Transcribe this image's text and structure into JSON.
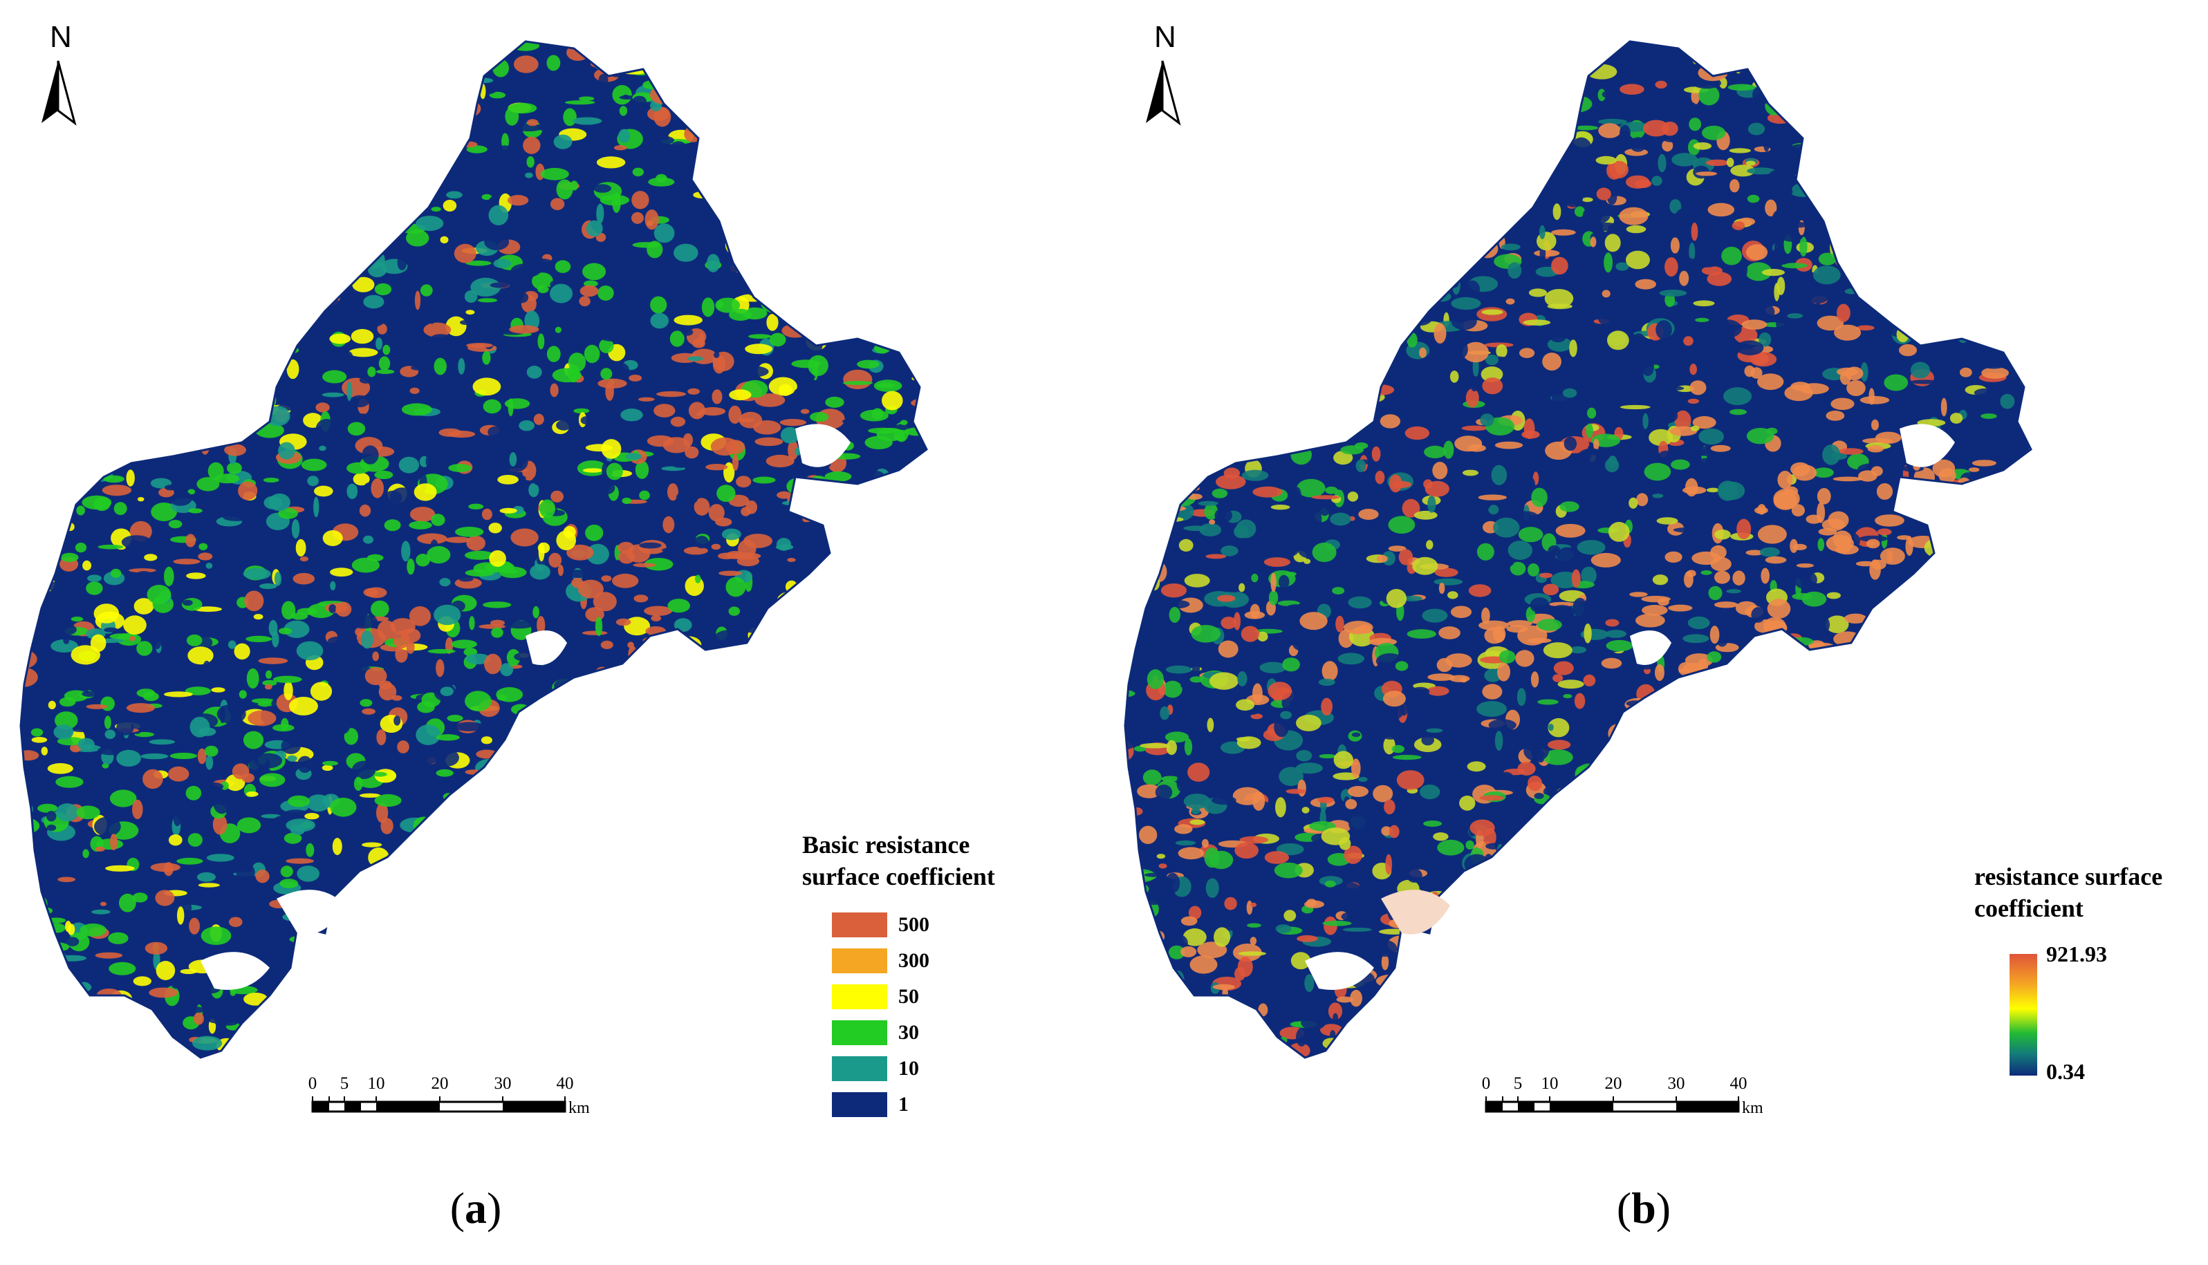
{
  "figure": {
    "panels": [
      {
        "id": "a",
        "caption_open": "(",
        "caption_letter": "a",
        "caption_close": ")",
        "north_label": "N",
        "legend": {
          "title_line1": "Basic resistance",
          "title_line2": "surface coefficient",
          "classes": [
            {
              "label": "500",
              "color": "#d9603b"
            },
            {
              "label": "300",
              "color": "#f5a623"
            },
            {
              "label": "50",
              "color": "#ffff00"
            },
            {
              "label": "30",
              "color": "#22cc22"
            },
            {
              "label": "10",
              "color": "#1a9a8a"
            },
            {
              "label": "1",
              "color": "#0d2a7a"
            }
          ]
        },
        "scale_bar": {
          "ticks": [
            "0",
            "5",
            "10",
            "20",
            "30",
            "40"
          ],
          "unit": "km"
        },
        "map_palette": [
          "#0d2a7a",
          "#0d2a7a",
          "#22cc22",
          "#22cc22",
          "#1a9a8a",
          "#ffff00",
          "#d9603b"
        ]
      },
      {
        "id": "b",
        "caption_open": "(",
        "caption_letter": "b",
        "caption_close": ")",
        "north_label": "N",
        "legend": {
          "title_line1": "resistance surface",
          "title_line2": "coefficient",
          "max_label": "921.93",
          "min_label": "0.34",
          "gradient_colors": [
            "#e0543a",
            "#f5a623",
            "#ffff00",
            "#22bb33",
            "#137c7a",
            "#0d2a7a"
          ]
        },
        "scale_bar": {
          "ticks": [
            "0",
            "5",
            "10",
            "20",
            "30",
            "40"
          ],
          "unit": "km"
        },
        "map_palette": [
          "#0d2a7a",
          "#0d2a7a",
          "#137c7a",
          "#22bb33",
          "#c9d92a",
          "#e0543a",
          "#f08a4b"
        ]
      }
    ]
  }
}
